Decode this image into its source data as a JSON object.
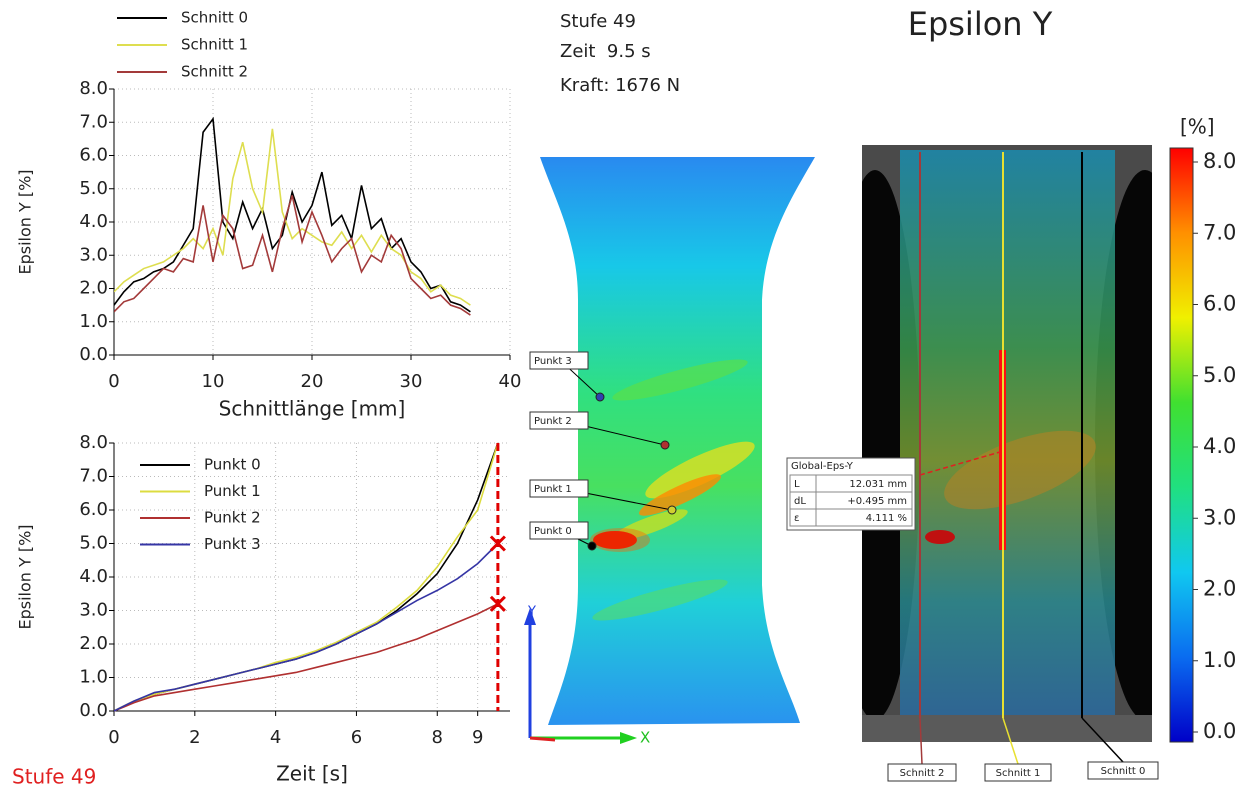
{
  "chart_data": [
    {
      "type": "line",
      "xlabel": "Schnittlänge [mm]",
      "ylabel": "Epsilon Y [%]",
      "x": [
        0,
        1,
        2,
        3,
        4,
        5,
        6,
        7,
        8,
        9,
        10,
        11,
        12,
        13,
        14,
        15,
        16,
        17,
        18,
        19,
        20,
        21,
        22,
        23,
        24,
        25,
        26,
        27,
        28,
        29,
        30,
        31,
        32,
        33,
        34,
        35,
        36
      ],
      "series": [
        {
          "name": "Schnitt 0",
          "color": "#000000",
          "values": [
            1.5,
            1.9,
            2.2,
            2.3,
            2.5,
            2.6,
            2.8,
            3.3,
            3.8,
            6.7,
            7.1,
            4.0,
            3.5,
            4.6,
            3.8,
            4.4,
            3.2,
            3.6,
            4.9,
            4.0,
            4.5,
            5.5,
            3.9,
            4.2,
            3.5,
            5.1,
            3.8,
            4.1,
            3.2,
            3.5,
            2.8,
            2.5,
            2.0,
            2.1,
            1.6,
            1.5,
            1.3
          ]
        },
        {
          "name": "Schnitt 1",
          "color": "#dede50",
          "values": [
            1.9,
            2.2,
            2.4,
            2.6,
            2.7,
            2.8,
            3.0,
            3.2,
            3.5,
            3.2,
            3.8,
            3.0,
            5.3,
            6.4,
            5.0,
            4.3,
            6.8,
            4.3,
            3.5,
            3.8,
            3.6,
            3.4,
            3.3,
            3.7,
            3.2,
            3.6,
            3.1,
            3.6,
            3.2,
            3.0,
            2.5,
            2.3,
            1.9,
            2.1,
            1.8,
            1.7,
            1.5
          ]
        },
        {
          "name": "Schnitt 2",
          "color": "#a33a3a",
          "values": [
            1.3,
            1.6,
            1.7,
            2.0,
            2.3,
            2.6,
            2.5,
            2.9,
            2.8,
            4.5,
            2.8,
            4.2,
            3.8,
            2.6,
            2.7,
            3.6,
            2.5,
            3.8,
            4.8,
            3.4,
            4.3,
            3.6,
            2.8,
            3.2,
            3.5,
            2.5,
            3.0,
            2.8,
            3.6,
            3.2,
            2.3,
            2.0,
            1.7,
            1.8,
            1.5,
            1.4,
            1.2
          ]
        }
      ],
      "xlim": [
        0,
        40
      ],
      "xticks": [
        0,
        10,
        20,
        30,
        40
      ],
      "ylim": [
        0,
        8
      ],
      "yticks": [
        {
          "value": 0,
          "label": "0.0"
        },
        {
          "value": 1,
          "label": "1.0"
        },
        {
          "value": 2,
          "label": "2.0"
        },
        {
          "value": 3,
          "label": "3.0"
        },
        {
          "value": 4,
          "label": "4.0"
        },
        {
          "value": 5,
          "label": "5.0"
        },
        {
          "value": 6,
          "label": "6.0"
        },
        {
          "value": 7,
          "label": "7.0"
        },
        {
          "value": 8,
          "label": "8.0"
        }
      ],
      "grid": true,
      "legend": "above"
    },
    {
      "type": "line",
      "xlabel": "Zeit [s]",
      "ylabel": "Epsilon Y [%]",
      "x": [
        0,
        0.5,
        1,
        1.5,
        2,
        2.5,
        3,
        3.5,
        4,
        4.5,
        5,
        5.5,
        6,
        6.5,
        7,
        7.5,
        8,
        8.5,
        9,
        9.5
      ],
      "series": [
        {
          "name": "Punkt 0",
          "color": "#000000",
          "values": [
            0,
            0.3,
            0.5,
            0.65,
            0.8,
            0.95,
            1.1,
            1.25,
            1.4,
            1.55,
            1.75,
            2.0,
            2.3,
            2.6,
            3.0,
            3.5,
            4.1,
            5.0,
            6.3,
            8.0
          ]
        },
        {
          "name": "Punkt 1",
          "color": "#dcdc40",
          "values": [
            0,
            0.3,
            0.5,
            0.65,
            0.8,
            0.95,
            1.1,
            1.25,
            1.45,
            1.6,
            1.8,
            2.05,
            2.35,
            2.65,
            3.1,
            3.6,
            4.3,
            5.2,
            6.0,
            8.0
          ]
        },
        {
          "name": "Punkt 2",
          "color": "#b03030",
          "values": [
            0,
            0.25,
            0.45,
            0.55,
            0.65,
            0.75,
            0.85,
            0.95,
            1.05,
            1.15,
            1.3,
            1.45,
            1.6,
            1.75,
            1.95,
            2.15,
            2.4,
            2.65,
            2.9,
            3.2
          ]
        },
        {
          "name": "Punkt 3",
          "color": "#3535a5",
          "values": [
            0,
            0.3,
            0.55,
            0.65,
            0.8,
            0.95,
            1.1,
            1.25,
            1.4,
            1.55,
            1.75,
            2.0,
            2.3,
            2.6,
            2.95,
            3.3,
            3.6,
            3.95,
            4.4,
            5.0
          ]
        }
      ],
      "xlim": [
        0,
        9.8
      ],
      "xticks": [
        0,
        2,
        4,
        6,
        8,
        9
      ],
      "ylim": [
        0,
        8
      ],
      "yticks": [
        {
          "value": 0,
          "label": "0.0"
        },
        {
          "value": 1,
          "label": "1.0"
        },
        {
          "value": 2,
          "label": "2.0"
        },
        {
          "value": 3,
          "label": "3.0"
        },
        {
          "value": 4,
          "label": "4.0"
        },
        {
          "value": 5,
          "label": "5.0"
        },
        {
          "value": 6,
          "label": "6.0"
        },
        {
          "value": 7,
          "label": "7.0"
        },
        {
          "value": 8,
          "label": "8.0"
        }
      ],
      "grid": true,
      "legend": "upper left",
      "marker_x": 9.5,
      "marker_color": "#e00000"
    }
  ],
  "info": {
    "stage": "Stufe 49",
    "time": "Zeit  9.5 s",
    "force": "Kraft: 1676 N"
  },
  "title": "Epsilon Y",
  "footer": {
    "stage": "Stufe 49"
  },
  "points_overlay": {
    "labels": [
      "Punkt 3",
      "Punkt 2",
      "Punkt 1",
      "Punkt 0"
    ]
  },
  "axis_icon": {
    "y": "Y",
    "x": "X"
  },
  "sections_overlay": {
    "labels": [
      "Schnitt 2",
      "Schnitt 1",
      "Schnitt 0"
    ]
  },
  "measurement": {
    "title": "Global-Eps-Y",
    "rows": [
      [
        "L",
        "12.031 mm"
      ],
      [
        "dL",
        "+0.495 mm"
      ],
      [
        "ε",
        "4.111 %"
      ]
    ]
  },
  "colorbar": {
    "label": "[%]",
    "lim": [
      0,
      8
    ],
    "ticks": [
      {
        "value": 0,
        "label": "0.0"
      },
      {
        "value": 1,
        "label": "1.0"
      },
      {
        "value": 2,
        "label": "2.0"
      },
      {
        "value": 3,
        "label": "3.0"
      },
      {
        "value": 4,
        "label": "4.0"
      },
      {
        "value": 5,
        "label": "5.0"
      },
      {
        "value": 6,
        "label": "6.0"
      },
      {
        "value": 7,
        "label": "7.0"
      },
      {
        "value": 8,
        "label": "8.0"
      }
    ],
    "colors": [
      "#0000c8",
      "#0a6cf0",
      "#10c8f0",
      "#20e080",
      "#40e030",
      "#f0f000",
      "#ff9000",
      "#ff0000"
    ]
  }
}
